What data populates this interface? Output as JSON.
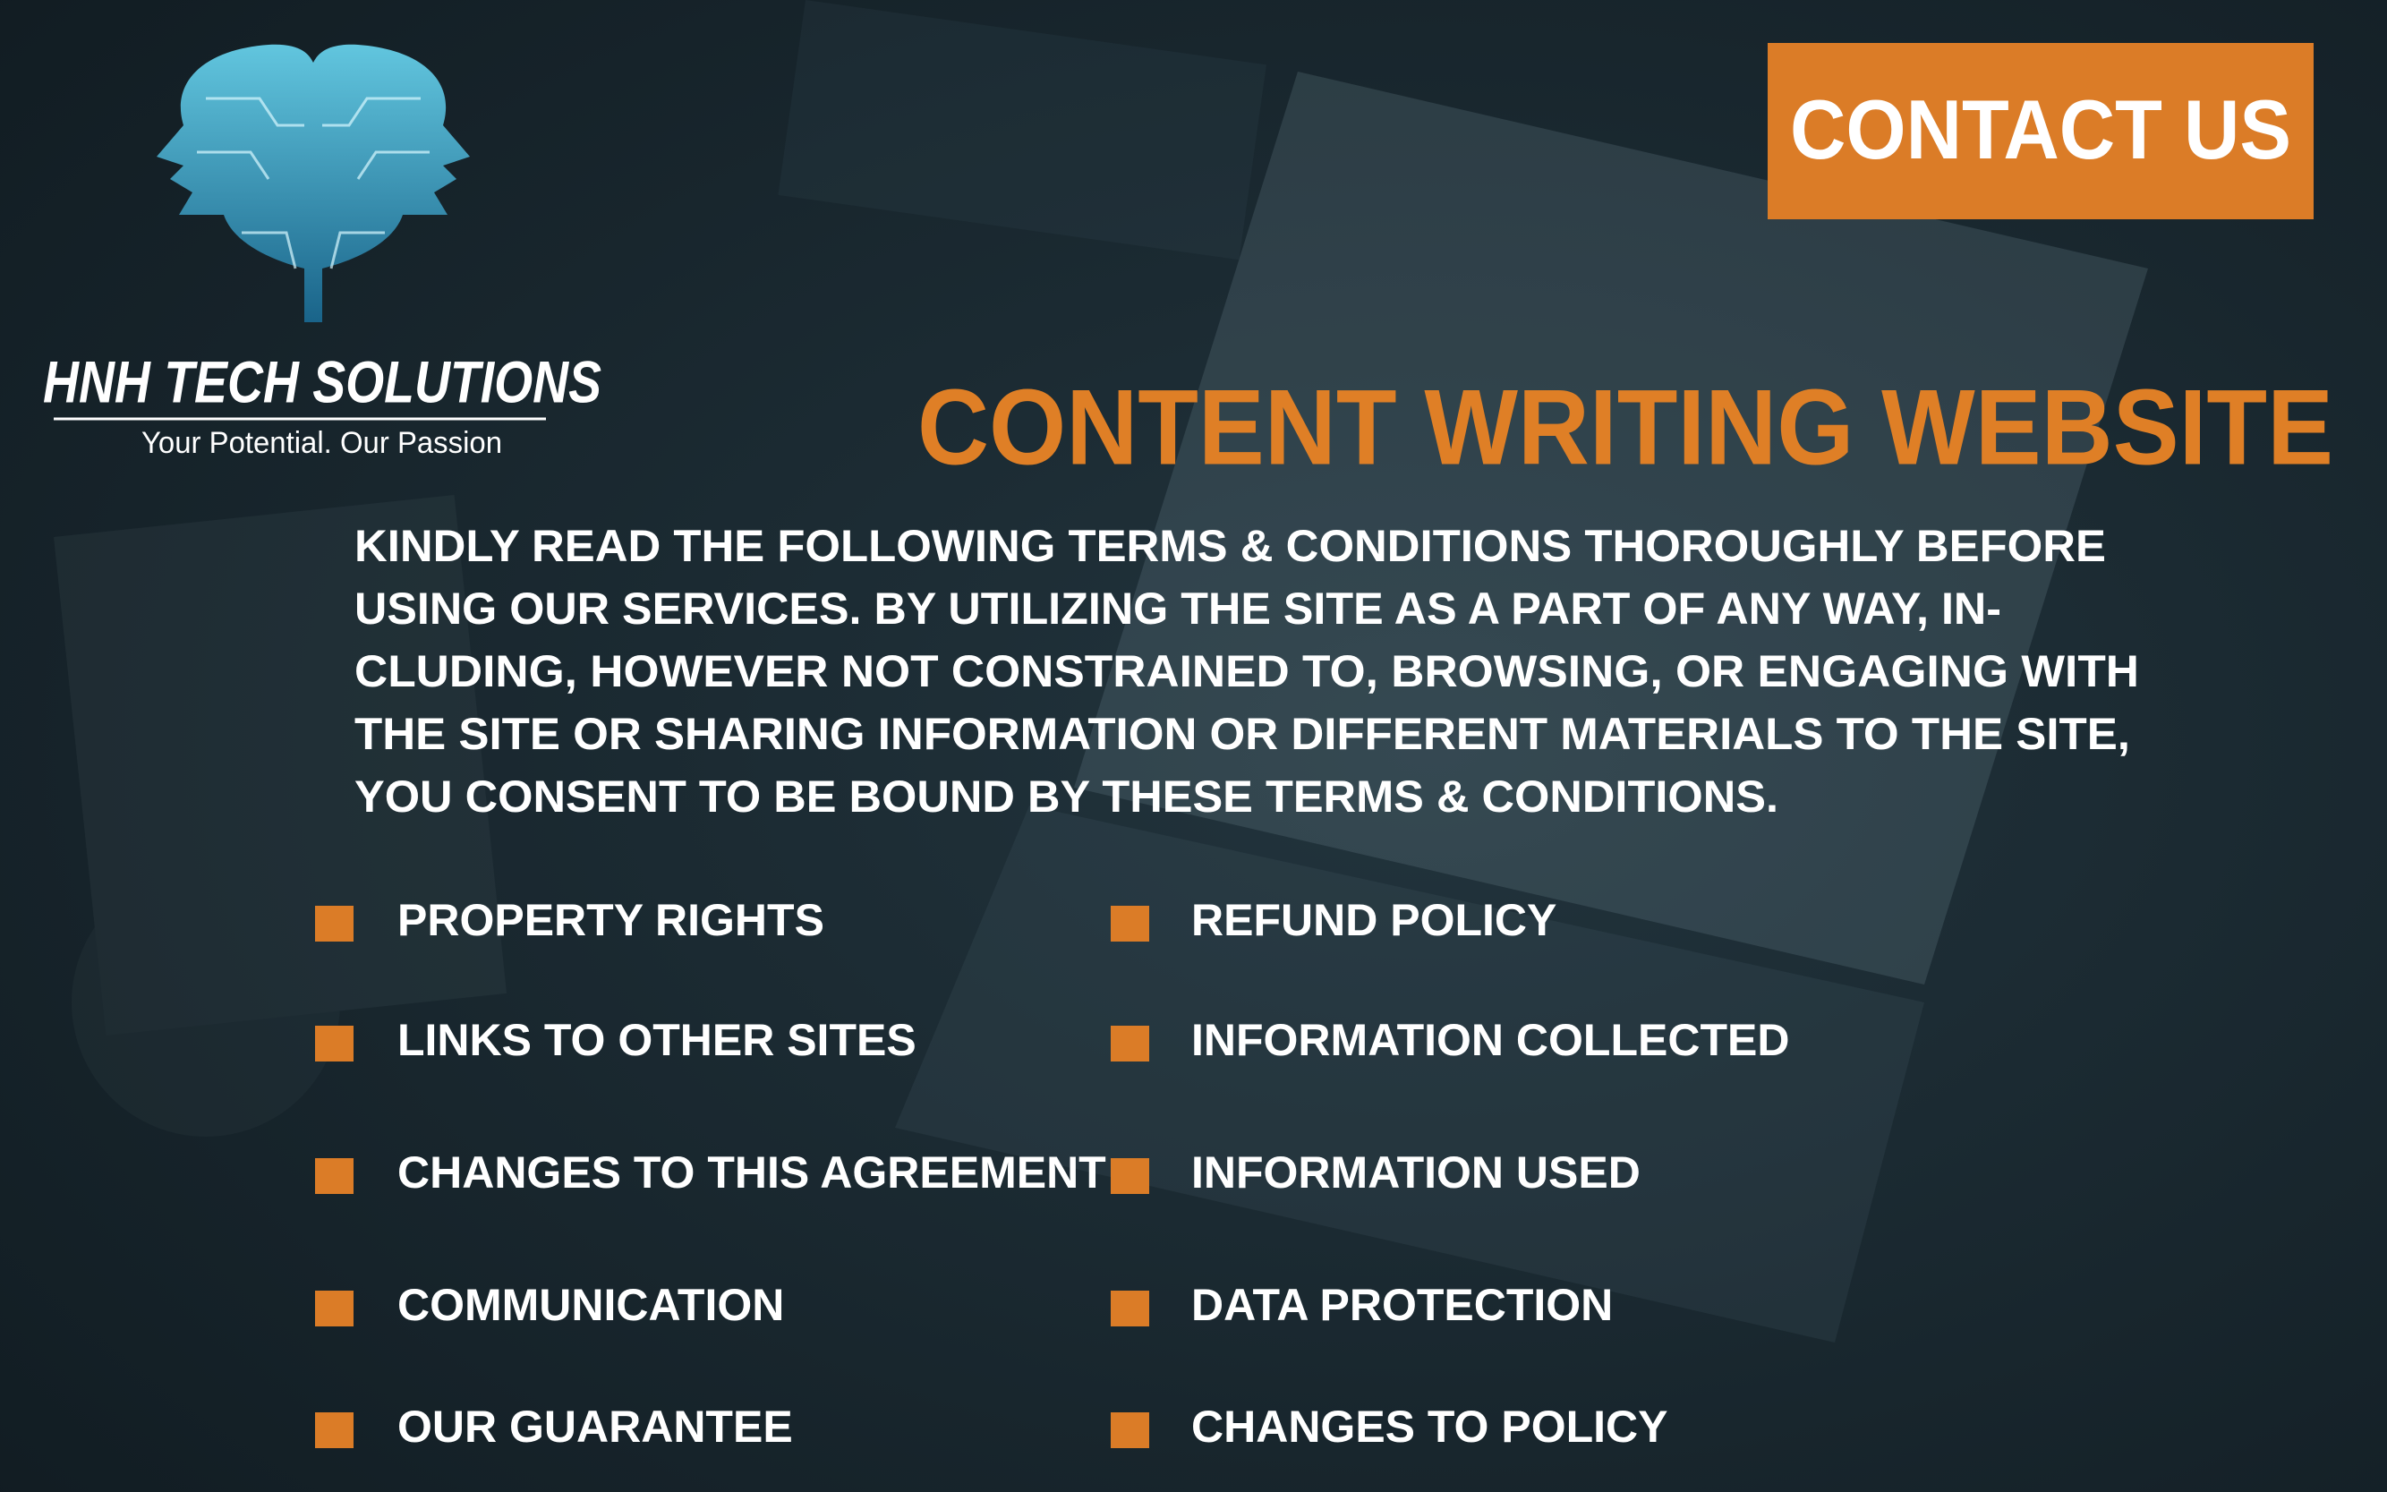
{
  "header": {
    "brand": "HNH TECH SOLUTIONS",
    "tagline": "Your Potential. Our Passion",
    "contact_button": "CONTACT US"
  },
  "title": "CONTENT WRITING WEBSITE",
  "intro_lines": [
    "KINDLY READ THE FOLLOWING TERMS & CONDITIONS THOROUGHLY BEFORE",
    "USING OUR SERVICES. BY UTILIZING THE SITE AS A PART OF ANY WAY, IN-",
    "CLUDING, HOWEVER NOT CONSTRAINED TO, BROWSING, OR ENGAGING WITH",
    "THE SITE OR SHARING INFORMATION OR DIFFERENT MATERIALS TO THE SITE,",
    "YOU CONSENT TO BE BOUND BY THESE TERMS & CONDITIONS."
  ],
  "left_column": [
    "PROPERTY RIGHTS",
    "LINKS TO OTHER SITES",
    "CHANGES TO THIS AGREEMENT",
    "COMMUNICATION",
    "OUR GUARANTEE"
  ],
  "right_column": [
    "REFUND POLICY",
    "INFORMATION COLLECTED",
    "INFORMATION USED",
    "DATA PROTECTION",
    "CHANGES TO POLICY"
  ]
}
